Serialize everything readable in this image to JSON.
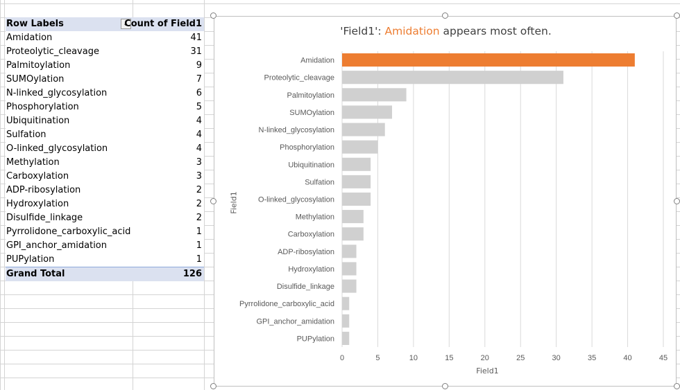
{
  "pivot": {
    "header": {
      "row_labels": "Row Labels",
      "count_label": "Count of Field1",
      "filter_icon": "sort-filter-icon"
    },
    "rows": [
      {
        "label": "Amidation",
        "count": "41"
      },
      {
        "label": "Proteolytic_cleavage",
        "count": "31"
      },
      {
        "label": "Palmitoylation",
        "count": "9"
      },
      {
        "label": "SUMOylation",
        "count": "7"
      },
      {
        "label": "N-linked_glycosylation",
        "count": "6"
      },
      {
        "label": "Phosphorylation",
        "count": "5"
      },
      {
        "label": "Ubiquitination",
        "count": "4"
      },
      {
        "label": "Sulfation",
        "count": "4"
      },
      {
        "label": "O-linked_glycosylation",
        "count": "4"
      },
      {
        "label": "Methylation",
        "count": "3"
      },
      {
        "label": "Carboxylation",
        "count": "3"
      },
      {
        "label": "ADP-ribosylation",
        "count": "2"
      },
      {
        "label": "Hydroxylation",
        "count": "2"
      },
      {
        "label": "Disulfide_linkage",
        "count": "2"
      },
      {
        "label": "Pyrrolidone_carboxylic_acid",
        "count": "1"
      },
      {
        "label": "GPI_anchor_amidation",
        "count": "1"
      },
      {
        "label": "PUPylation",
        "count": "1"
      }
    ],
    "total": {
      "label": "Grand Total",
      "count": "126"
    }
  },
  "chart_data": {
    "type": "bar",
    "orientation": "horizontal",
    "title_prefix": "'Field1': ",
    "title_highlight": "Amidation",
    "title_suffix": " appears most often.",
    "categories": [
      "Amidation",
      "Proteolytic_cleavage",
      "Palmitoylation",
      "SUMOylation",
      "N-linked_glycosylation",
      "Phosphorylation",
      "Ubiquitination",
      "Sulfation",
      "O-linked_glycosylation",
      "Methylation",
      "Carboxylation",
      "ADP-ribosylation",
      "Hydroxylation",
      "Disulfide_linkage",
      "Pyrrolidone_carboxylic_acid",
      "GPI_anchor_amidation",
      "PUPylation"
    ],
    "values": [
      41,
      31,
      9,
      7,
      6,
      5,
      4,
      4,
      4,
      3,
      3,
      2,
      2,
      2,
      1,
      1,
      1
    ],
    "highlight_index": 0,
    "xlabel": "Field1",
    "ylabel": "Field1",
    "xlim": [
      0,
      45
    ],
    "xticks": [
      0,
      5,
      10,
      15,
      20,
      25,
      30,
      35,
      40,
      45
    ],
    "grid": true,
    "colors": {
      "highlight": "#ed7d31",
      "default": "#d0d0d0",
      "gridline": "#d9d9d9"
    }
  }
}
